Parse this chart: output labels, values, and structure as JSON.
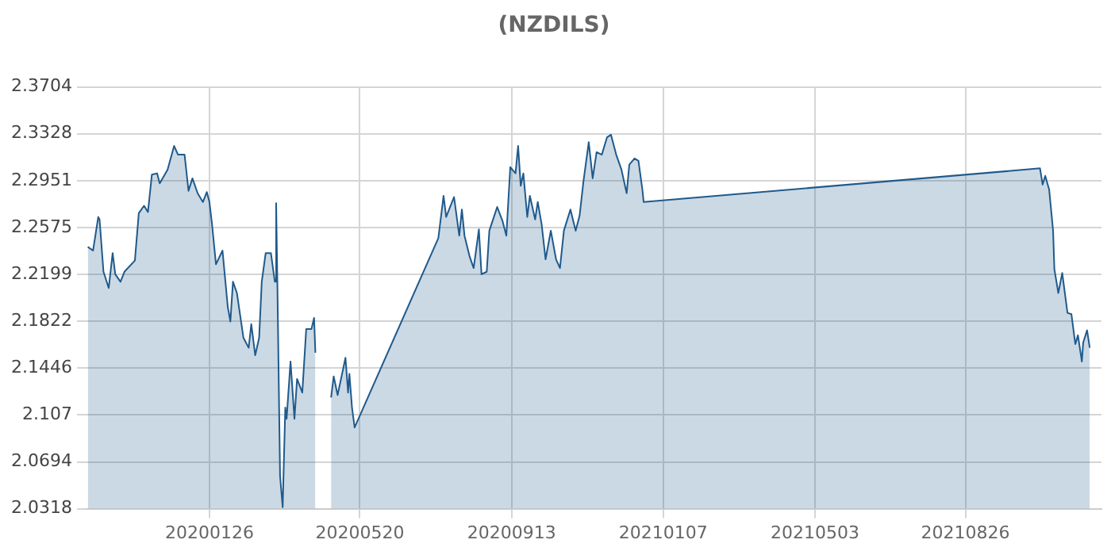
{
  "chart_data": {
    "type": "area",
    "title": "(NZDILS)",
    "x": [
      "2019-10-25",
      "2019-10-29",
      "2019-11-02",
      "2019-11-03",
      "2019-11-06",
      "2019-11-10",
      "2019-11-13",
      "2019-11-15",
      "2019-11-19",
      "2019-11-22",
      "2019-11-30",
      "2019-12-03",
      "2019-12-07",
      "2019-12-10",
      "2019-12-13",
      "2019-12-17",
      "2019-12-19",
      "2019-12-25",
      "2019-12-30",
      "2020-01-02",
      "2020-01-07",
      "2020-01-10",
      "2020-01-13",
      "2020-01-17",
      "2020-01-21",
      "2020-01-24",
      "2020-01-26",
      "2020-01-28",
      "2020-01-31",
      "2020-02-05",
      "2020-02-09",
      "2020-02-11",
      "2020-02-13",
      "2020-02-16",
      "2020-02-21",
      "2020-02-25",
      "2020-02-27",
      "2020-03-01",
      "2020-03-04",
      "2020-03-06",
      "2020-03-09",
      "2020-03-13",
      "2020-03-16",
      "2020-03-17",
      "2020-03-18",
      "2020-03-20",
      "2020-03-22",
      "2020-03-24",
      "2020-03-25",
      "2020-03-28",
      "2020-03-31",
      "2020-04-02",
      "2020-04-06",
      "2020-04-09",
      "2020-04-13",
      "2020-04-15",
      "2020-04-16",
      "2020-04-22",
      "2020-04-28",
      "2020-04-30",
      "2020-05-03",
      "2020-05-09",
      "2020-05-11",
      "2020-05-12",
      "2020-05-14",
      "2020-05-16",
      "2020-07-19",
      "2020-07-23",
      "2020-07-25",
      "2020-07-31",
      "2020-08-04",
      "2020-08-06",
      "2020-08-08",
      "2020-08-12",
      "2020-08-15",
      "2020-08-19",
      "2020-08-21",
      "2020-08-25",
      "2020-08-27",
      "2020-09-02",
      "2020-09-06",
      "2020-09-09",
      "2020-09-12",
      "2020-09-16",
      "2020-09-18",
      "2020-09-20",
      "2020-09-22",
      "2020-09-25",
      "2020-09-27",
      "2020-10-01",
      "2020-10-03",
      "2020-10-06",
      "2020-10-09",
      "2020-10-13",
      "2020-10-17",
      "2020-10-20",
      "2020-10-23",
      "2020-10-28",
      "2020-11-01",
      "2020-11-04",
      "2020-11-07",
      "2020-11-11",
      "2020-11-14",
      "2020-11-17",
      "2020-11-21",
      "2020-11-25",
      "2020-11-28",
      "2020-12-02",
      "2020-12-06",
      "2020-12-10",
      "2020-12-12",
      "2020-12-16",
      "2020-12-19",
      "2020-12-22",
      "2020-12-23",
      "2021-10-22",
      "2021-10-24",
      "2021-10-26",
      "2021-10-29",
      "2021-11-01",
      "2021-11-02",
      "2021-11-05",
      "2021-11-08",
      "2021-11-12",
      "2021-11-15",
      "2021-11-18",
      "2021-11-20",
      "2021-11-23",
      "2021-11-24",
      "2021-11-27",
      "2021-11-29"
    ],
    "series": [
      {
        "color": "#1f5a8c",
        "values": [
          2.242,
          2.239,
          2.266,
          2.264,
          2.222,
          2.209,
          2.237,
          2.22,
          2.214,
          2.222,
          2.231,
          2.269,
          2.275,
          2.27,
          2.3,
          2.301,
          2.293,
          2.304,
          2.323,
          2.316,
          2.316,
          2.287,
          2.297,
          2.285,
          2.278,
          2.286,
          2.278,
          2.26,
          2.228,
          2.239,
          2.194,
          2.182,
          2.214,
          2.205,
          2.169,
          2.161,
          2.18,
          2.155,
          2.169,
          2.214,
          2.237,
          2.237,
          2.214,
          2.277,
          2.209,
          2.058,
          2.033,
          2.113,
          2.104,
          2.15,
          2.104,
          2.136,
          2.125,
          2.176,
          2.176,
          2.185,
          2.157,
          null,
          2.121,
          2.138,
          2.123,
          2.153,
          2.125,
          2.14,
          2.113,
          2.097,
          2.249,
          2.283,
          2.266,
          2.282,
          2.251,
          2.272,
          2.251,
          2.234,
          2.225,
          2.256,
          2.22,
          2.222,
          2.255,
          2.274,
          2.263,
          2.251,
          2.306,
          2.301,
          2.323,
          2.291,
          2.301,
          2.266,
          2.283,
          2.264,
          2.278,
          2.26,
          2.232,
          2.255,
          2.232,
          2.225,
          2.255,
          2.272,
          2.255,
          2.267,
          2.295,
          2.326,
          2.297,
          2.318,
          2.316,
          2.33,
          2.332,
          2.316,
          2.304,
          2.285,
          2.308,
          2.313,
          2.311,
          2.288,
          2.278,
          2.305,
          2.292,
          2.299,
          2.288,
          2.255,
          2.224,
          2.205,
          2.221,
          2.189,
          2.188,
          2.164,
          2.171,
          2.15,
          2.165,
          2.175,
          2.161
        ]
      }
    ],
    "xlim": [
      "2019-10-24",
      "2021-12-08"
    ],
    "xticks": [
      {
        "value": "2020-01-26",
        "label": "20200126"
      },
      {
        "value": "2020-05-20",
        "label": "20200520"
      },
      {
        "value": "2020-09-13",
        "label": "20200913"
      },
      {
        "value": "2021-01-07",
        "label": "20210107"
      },
      {
        "value": "2021-05-03",
        "label": "20210503"
      },
      {
        "value": "2021-08-26",
        "label": "20210826"
      }
    ],
    "ylim": [
      2.0318,
      2.3704
    ],
    "yticks": [
      2.0318,
      2.0694,
      2.107,
      2.1446,
      2.1822,
      2.2199,
      2.2575,
      2.2951,
      2.3328,
      2.3704
    ],
    "grid": true,
    "legend": false,
    "marker": "none",
    "line_style": "solid"
  }
}
